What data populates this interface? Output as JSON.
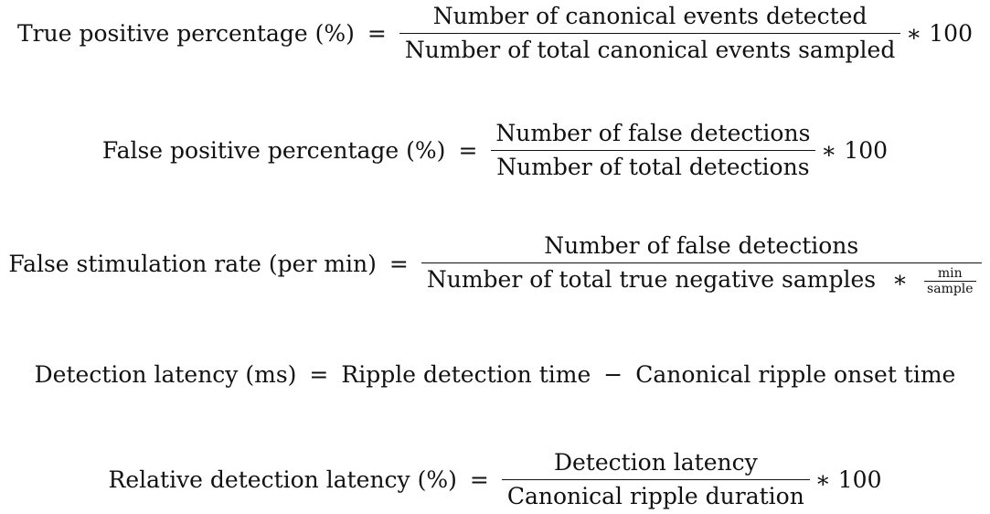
{
  "equations": [
    {
      "lhs": "True positive percentage (%)",
      "op": "=",
      "numerator": "Number of canonical events detected",
      "denominator": "Number of total canonical events sampled",
      "multiplier": "∗ 100"
    },
    {
      "lhs": "False positive percentage (%)",
      "op": "=",
      "numerator": "Number of false detections",
      "denominator": "Number of total detections",
      "multiplier": "∗ 100"
    },
    {
      "lhs": "False stimulation rate (per min)",
      "op": "=",
      "numerator": "Number of false detections",
      "denominator_text": "Number of total true negative samples",
      "denominator_op": "∗",
      "unit_numerator": "min",
      "unit_denominator": "sample"
    },
    {
      "lhs": "Detection latency (ms)",
      "op": "=",
      "term1": "Ripple detection time",
      "minus": "−",
      "term2": "Canonical ripple onset time"
    },
    {
      "lhs": "Relative detection latency (%)",
      "op": "=",
      "numerator": "Detection latency",
      "denominator": "Canonical ripple duration",
      "multiplier": "∗ 100"
    }
  ]
}
